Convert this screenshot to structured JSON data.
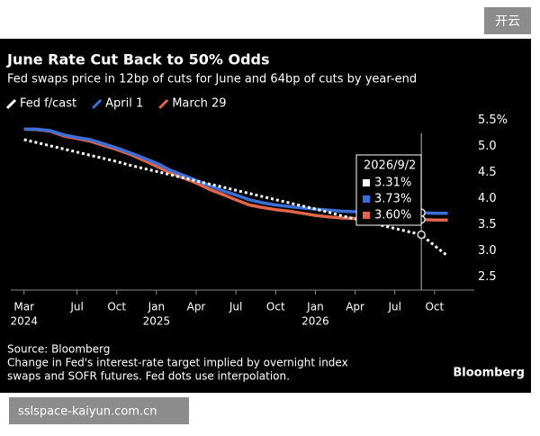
{
  "overlay": {
    "button": "开云",
    "url": "sslspace-kaiyun.com.cn"
  },
  "chart_data": {
    "type": "line",
    "title": "June Rate Cut Back to 50% Odds",
    "subtitle": "Fed swaps price in 12bp of cuts for June and 64bp of cuts by year-end",
    "x": [
      "2024-03",
      "2024-04",
      "2024-05",
      "2024-06",
      "2024-07",
      "2024-08",
      "2024-09",
      "2024-10",
      "2024-11",
      "2024-12",
      "2025-01",
      "2025-02",
      "2025-03",
      "2025-04",
      "2025-05",
      "2025-06",
      "2025-07",
      "2025-08",
      "2025-09",
      "2025-10",
      "2025-11",
      "2025-12",
      "2026-01",
      "2026-02",
      "2026-03",
      "2026-04",
      "2026-05",
      "2026-06",
      "2026-07",
      "2026-08",
      "2026-09",
      "2026-10",
      "2026-11"
    ],
    "series": [
      {
        "name": "Fed f/cast",
        "color": "#ffffff",
        "dashed": true,
        "values": [
          5.13,
          5.07,
          5.01,
          4.95,
          4.89,
          4.83,
          4.77,
          4.71,
          4.64,
          4.58,
          4.52,
          4.46,
          4.4,
          4.34,
          4.28,
          4.22,
          4.16,
          4.1,
          4.04,
          3.98,
          3.92,
          3.86,
          3.8,
          3.74,
          3.67,
          3.61,
          3.55,
          3.49,
          3.43,
          3.37,
          3.31,
          3.1,
          2.9
        ]
      },
      {
        "name": "April 1",
        "color": "#3a6fd8",
        "values": [
          5.33,
          5.33,
          5.3,
          5.22,
          5.17,
          5.13,
          5.05,
          4.97,
          4.88,
          4.78,
          4.68,
          4.55,
          4.45,
          4.35,
          4.25,
          4.15,
          4.07,
          3.98,
          3.92,
          3.88,
          3.85,
          3.82,
          3.8,
          3.78,
          3.76,
          3.75,
          3.74,
          3.74,
          3.73,
          3.73,
          3.73,
          3.72,
          3.72
        ]
      },
      {
        "name": "March 29",
        "color": "#e0654a",
        "values": [
          5.33,
          5.32,
          5.29,
          5.2,
          5.15,
          5.1,
          5.02,
          4.94,
          4.85,
          4.74,
          4.62,
          4.5,
          4.4,
          4.3,
          4.18,
          4.08,
          3.98,
          3.88,
          3.83,
          3.79,
          3.76,
          3.72,
          3.68,
          3.65,
          3.63,
          3.62,
          3.61,
          3.6,
          3.6,
          3.6,
          3.6,
          3.59,
          3.59
        ]
      }
    ],
    "xlim": [
      "2024-02",
      "2027-01"
    ],
    "xticks": [
      {
        "value": "2024-03",
        "label": "Mar",
        "sublabel": "2024"
      },
      {
        "value": "2024-07",
        "label": "Jul"
      },
      {
        "value": "2024-10",
        "label": "Oct"
      },
      {
        "value": "2025-01",
        "label": "Jan",
        "sublabel": "2025"
      },
      {
        "value": "2025-04",
        "label": "Apr"
      },
      {
        "value": "2025-07",
        "label": "Jul"
      },
      {
        "value": "2025-10",
        "label": "Oct"
      },
      {
        "value": "2026-01",
        "label": "Jan",
        "sublabel": "2026"
      },
      {
        "value": "2026-04",
        "label": "Apr"
      },
      {
        "value": "2026-07",
        "label": "Jul"
      },
      {
        "value": "2026-10",
        "label": "Oct"
      }
    ],
    "ylim": [
      2.25,
      5.5
    ],
    "yticks": [
      2.5,
      {
        "value": 3,
        "label": "3.0"
      },
      3.5,
      {
        "value": 4,
        "label": "4.0"
      },
      4.5,
      {
        "value": 5,
        "label": "5.0"
      },
      {
        "value": 5.5,
        "label": "5.5%"
      }
    ],
    "y_axis_side": "right",
    "annotation": {
      "label": "2026/9/2",
      "x": "2026-09",
      "values": [
        3.31,
        3.73,
        3.6
      ],
      "value_labels": [
        "3.31%",
        "3.73%",
        "3.60%"
      ]
    },
    "source": "Source: Bloomberg",
    "note": [
      "Change in Fed's interest-rate target implied by overnight index",
      "swaps and SOFR futures. Fed dots use interpolation."
    ],
    "brand": "Bloomberg"
  }
}
